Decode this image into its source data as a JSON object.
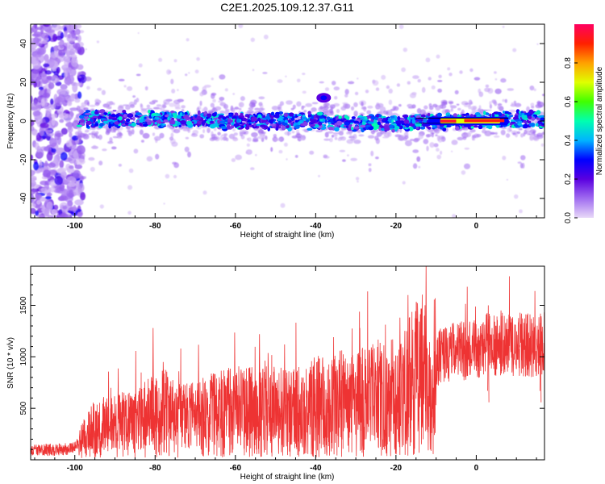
{
  "title": "C2E1.2025.109.12.37.G11",
  "chart_data": [
    {
      "type": "heatmap",
      "xlabel": "Height of straight line (km)",
      "ylabel": "Frequency (Hz)",
      "xlim": [
        -111,
        17
      ],
      "ylim": [
        -50,
        50
      ],
      "x_ticks": [
        "-100",
        "-80",
        "-60",
        "-40",
        "-20",
        "0"
      ],
      "x_tick_values": [
        -100,
        -80,
        -60,
        -40,
        -20,
        0
      ],
      "y_ticks": [
        "-40",
        "-20",
        "0",
        "20",
        "40"
      ],
      "y_tick_values": [
        -40,
        -20,
        0,
        20,
        40
      ],
      "colorbar": {
        "label": "Normalized spectral amplitude",
        "ticks": [
          "0.0",
          "0.2",
          "0.4",
          "0.6",
          "0.8"
        ],
        "tick_values": [
          0.0,
          0.2,
          0.4,
          0.6,
          0.8
        ],
        "range": [
          0,
          1
        ],
        "colors": [
          "#e8d8f8",
          "#a06cf0",
          "#5a00e0",
          "#0000ff",
          "#00b4ff",
          "#00ffb0",
          "#40ff00",
          "#e0ff00",
          "#ffa000",
          "#ff2000",
          "#ff0060"
        ]
      },
      "features": {
        "noise_region_x": [
          -111,
          -99
        ],
        "main_band_x": [
          -99,
          17
        ],
        "band_center_hz": [
          1,
          1,
          0,
          0,
          -1,
          -1,
          0,
          0,
          1
        ],
        "band_center_x": [
          -98,
          -80,
          -60,
          -40,
          -30,
          -20,
          -10,
          0,
          16
        ],
        "strong_segment_x": [
          -12,
          8
        ],
        "secondary_blob": {
          "x": -38,
          "y": 12
        }
      },
      "grid": false
    },
    {
      "type": "line",
      "xlabel": "Height of straight line (km)",
      "ylabel": "SNR (10 * v/v)",
      "xlim": [
        -111,
        17
      ],
      "ylim": [
        0,
        1880
      ],
      "x_ticks": [
        "-100",
        "-80",
        "-60",
        "-40",
        "-20",
        "0"
      ],
      "x_tick_values": [
        -100,
        -80,
        -60,
        -40,
        -20,
        0
      ],
      "y_ticks": [
        "500",
        "1000",
        "1500"
      ],
      "y_tick_values": [
        500,
        1000,
        1500
      ],
      "line_color": "#ee3333",
      "x": [
        -111,
        -106,
        -101,
        -99,
        -97,
        -95,
        -90,
        -85,
        -80,
        -78,
        -75,
        -70,
        -65,
        -60,
        -55,
        -50,
        -45,
        -40,
        -35,
        -30,
        -25,
        -20,
        -17,
        -15,
        -13,
        -12,
        -11,
        -10,
        -9,
        -7,
        -5,
        -2,
        0,
        2,
        5,
        8,
        10,
        13,
        15,
        17
      ],
      "y": [
        90,
        100,
        105,
        160,
        230,
        300,
        330,
        350,
        430,
        470,
        390,
        400,
        440,
        470,
        460,
        470,
        470,
        520,
        540,
        560,
        580,
        640,
        700,
        800,
        850,
        720,
        450,
        900,
        1000,
        1030,
        1050,
        1060,
        1080,
        1110,
        1130,
        1140,
        1120,
        1110,
        1080,
        1150
      ],
      "peaks": [
        {
          "x": -80.5,
          "y": 1280
        },
        {
          "x": -54,
          "y": 1220
        },
        {
          "x": -29,
          "y": 1280
        },
        {
          "x": -19,
          "y": 1380
        },
        {
          "x": -17,
          "y": 1600
        },
        {
          "x": -12.5,
          "y": 1880
        },
        {
          "x": 3,
          "y": 1500
        },
        {
          "x": 16,
          "y": 1420
        }
      ],
      "grid": false
    }
  ]
}
